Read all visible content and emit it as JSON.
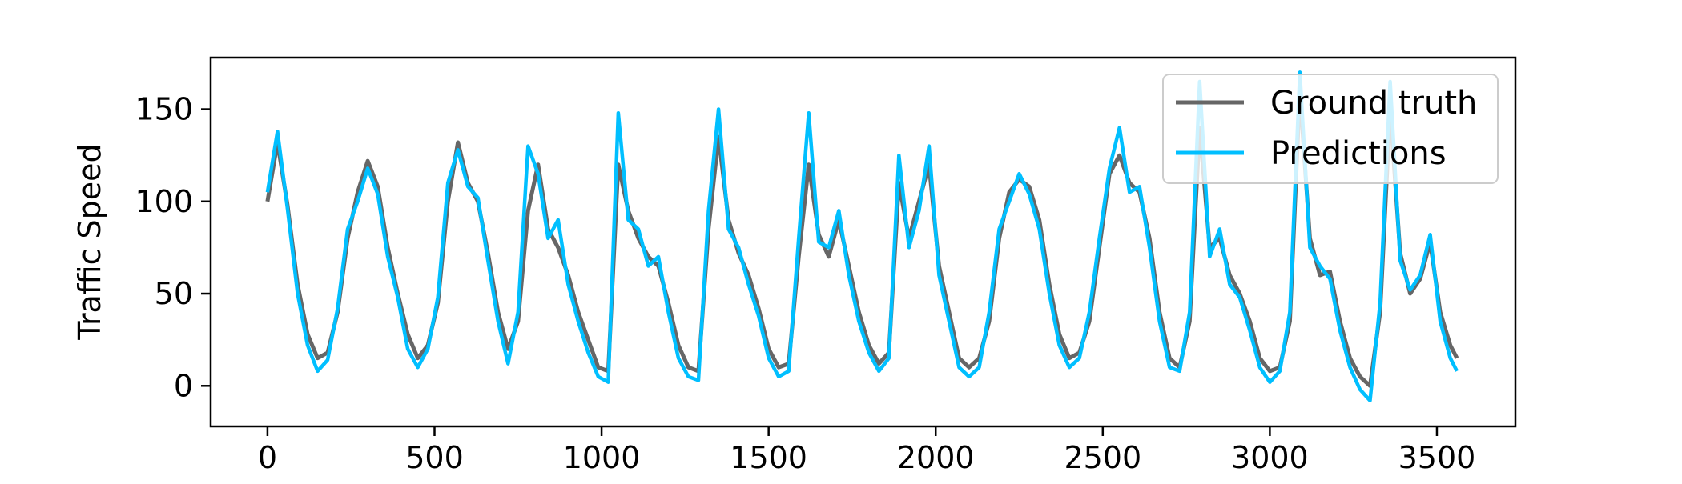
{
  "chart_data": {
    "type": "line",
    "title": "",
    "xlabel": "",
    "ylabel": "Traffic Speed",
    "xlim": [
      -170,
      3735
    ],
    "ylim": [
      -22,
      178
    ],
    "xticks": [
      0,
      500,
      1000,
      1500,
      2000,
      2500,
      3000,
      3500
    ],
    "yticks": [
      0,
      50,
      100,
      150
    ],
    "grid": false,
    "legend_position": "top-right",
    "series": [
      {
        "name": "Ground truth",
        "color": "#666666",
        "x": [
          0,
          30,
          60,
          90,
          120,
          150,
          180,
          210,
          240,
          270,
          300,
          330,
          360,
          390,
          420,
          450,
          480,
          510,
          540,
          570,
          600,
          630,
          660,
          690,
          720,
          750,
          780,
          810,
          840,
          870,
          900,
          930,
          960,
          990,
          1020,
          1050,
          1080,
          1110,
          1140,
          1170,
          1200,
          1230,
          1260,
          1290,
          1320,
          1350,
          1380,
          1410,
          1440,
          1470,
          1500,
          1530,
          1560,
          1590,
          1620,
          1650,
          1680,
          1710,
          1740,
          1770,
          1800,
          1830,
          1860,
          1890,
          1920,
          1950,
          1980,
          2010,
          2040,
          2070,
          2100,
          2130,
          2160,
          2190,
          2220,
          2250,
          2280,
          2310,
          2340,
          2370,
          2400,
          2430,
          2460,
          2490,
          2520,
          2550,
          2580,
          2610,
          2640,
          2670,
          2700,
          2730,
          2760,
          2790,
          2820,
          2850,
          2880,
          2910,
          2940,
          2970,
          3000,
          3030,
          3060,
          3090,
          3120,
          3150,
          3180,
          3210,
          3240,
          3270,
          3300,
          3330,
          3360,
          3390,
          3420,
          3450,
          3480,
          3510,
          3540,
          3560
        ],
        "y": [
          100,
          132,
          98,
          55,
          28,
          15,
          18,
          40,
          80,
          105,
          122,
          108,
          75,
          50,
          28,
          15,
          22,
          45,
          100,
          132,
          110,
          100,
          72,
          40,
          20,
          35,
          95,
          120,
          85,
          75,
          60,
          40,
          25,
          10,
          8,
          120,
          95,
          80,
          70,
          65,
          45,
          22,
          10,
          8,
          85,
          135,
          90,
          72,
          60,
          42,
          20,
          10,
          12,
          70,
          120,
          82,
          70,
          90,
          65,
          40,
          22,
          12,
          18,
          110,
          80,
          100,
          120,
          65,
          40,
          15,
          10,
          15,
          35,
          80,
          105,
          112,
          108,
          90,
          55,
          28,
          15,
          18,
          35,
          75,
          115,
          125,
          110,
          105,
          80,
          40,
          15,
          10,
          35,
          140,
          75,
          80,
          60,
          50,
          35,
          15,
          8,
          10,
          35,
          160,
          80,
          60,
          62,
          35,
          15,
          5,
          0,
          40,
          150,
          72,
          50,
          58,
          78,
          40,
          22,
          15
        ]
      },
      {
        "name": "Predictions",
        "color": "#00bfff",
        "x": [
          0,
          30,
          60,
          90,
          120,
          150,
          180,
          210,
          240,
          270,
          300,
          330,
          360,
          390,
          420,
          450,
          480,
          510,
          540,
          570,
          600,
          630,
          660,
          690,
          720,
          750,
          780,
          810,
          840,
          870,
          900,
          930,
          960,
          990,
          1020,
          1050,
          1080,
          1110,
          1140,
          1170,
          1200,
          1230,
          1260,
          1290,
          1320,
          1350,
          1380,
          1410,
          1440,
          1470,
          1500,
          1530,
          1560,
          1590,
          1620,
          1650,
          1680,
          1710,
          1740,
          1770,
          1800,
          1830,
          1860,
          1890,
          1920,
          1950,
          1980,
          2010,
          2040,
          2070,
          2100,
          2130,
          2160,
          2190,
          2220,
          2250,
          2280,
          2310,
          2340,
          2370,
          2400,
          2430,
          2460,
          2490,
          2520,
          2550,
          2580,
          2610,
          2640,
          2670,
          2700,
          2730,
          2760,
          2790,
          2820,
          2850,
          2880,
          2910,
          2940,
          2970,
          3000,
          3030,
          3060,
          3090,
          3120,
          3150,
          3180,
          3210,
          3240,
          3270,
          3300,
          3330,
          3360,
          3390,
          3420,
          3450,
          3480,
          3510,
          3540,
          3560
        ],
        "y": [
          105,
          138,
          96,
          50,
          22,
          8,
          14,
          42,
          85,
          100,
          118,
          104,
          70,
          48,
          20,
          10,
          20,
          48,
          110,
          128,
          108,
          102,
          68,
          35,
          12,
          40,
          130,
          115,
          80,
          90,
          55,
          35,
          18,
          5,
          2,
          148,
          90,
          85,
          65,
          70,
          40,
          15,
          5,
          3,
          95,
          150,
          85,
          75,
          55,
          38,
          15,
          5,
          8,
          80,
          148,
          78,
          75,
          95,
          60,
          35,
          18,
          8,
          15,
          125,
          75,
          95,
          130,
          60,
          35,
          10,
          5,
          10,
          40,
          85,
          100,
          115,
          104,
          85,
          50,
          22,
          10,
          15,
          40,
          80,
          118,
          140,
          105,
          108,
          75,
          35,
          10,
          8,
          40,
          165,
          70,
          85,
          55,
          48,
          30,
          10,
          2,
          8,
          40,
          170,
          75,
          65,
          58,
          30,
          10,
          -2,
          -8,
          45,
          165,
          68,
          52,
          60,
          82,
          35,
          15,
          8
        ]
      }
    ]
  }
}
